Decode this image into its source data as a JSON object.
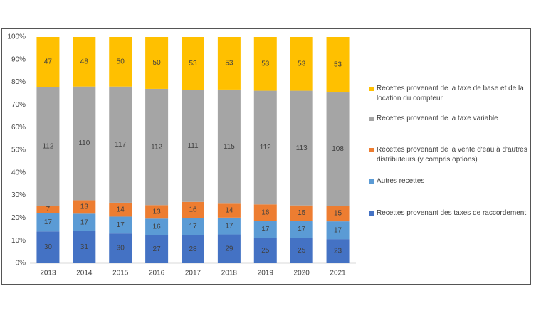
{
  "chart_data": {
    "type": "stacked100",
    "categories": [
      "2013",
      "2014",
      "2015",
      "2016",
      "2017",
      "2018",
      "2019",
      "2020",
      "2021"
    ],
    "series": [
      {
        "name": "Recettes provenant des taxes de raccordement",
        "color": "#4472c4",
        "values": [
          30,
          31,
          30,
          27,
          28,
          29,
          25,
          25,
          23
        ]
      },
      {
        "name": "Autres recettes",
        "color": "#5b9bd5",
        "values": [
          17,
          17,
          17,
          16,
          17,
          17,
          17,
          17,
          17
        ]
      },
      {
        "name": "Recettes provenant de la vente d'eau à d'autres distributeurs (y compris options)",
        "color": "#ed7d31",
        "values": [
          7,
          13,
          14,
          13,
          16,
          14,
          16,
          15,
          15
        ]
      },
      {
        "name": "Recettes provenant de la taxe variable",
        "color": "#a5a5a5",
        "values": [
          112,
          110,
          117,
          112,
          111,
          115,
          112,
          113,
          108
        ]
      },
      {
        "name": "Recettes provenant de la taxe de base et de la location du compteur",
        "color": "#ffc000",
        "values": [
          47,
          48,
          50,
          50,
          53,
          53,
          53,
          53,
          53
        ]
      }
    ],
    "ylim": [
      0,
      100
    ],
    "yticks": [
      {
        "value": 0,
        "label": "0%"
      },
      {
        "value": 10,
        "label": "10%"
      },
      {
        "value": 20,
        "label": "20%"
      },
      {
        "value": 30,
        "label": "30%"
      },
      {
        "value": 40,
        "label": "40%"
      },
      {
        "value": 50,
        "label": "50%"
      },
      {
        "value": 60,
        "label": "60%"
      },
      {
        "value": 70,
        "label": "70%"
      },
      {
        "value": 80,
        "label": "80%"
      },
      {
        "value": 90,
        "label": "90%"
      },
      {
        "value": 100,
        "label": "100%"
      }
    ],
    "grid": false,
    "legend": "right"
  }
}
